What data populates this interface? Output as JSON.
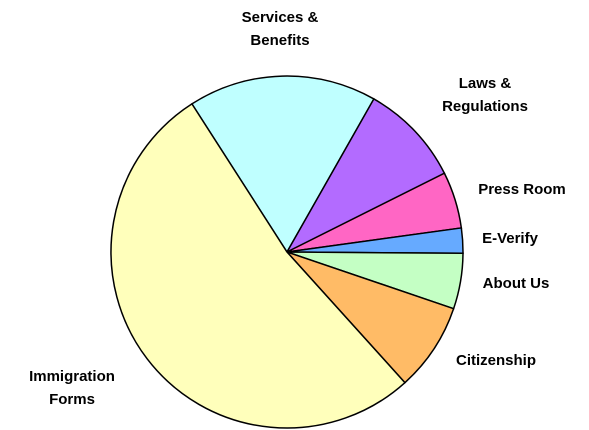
{
  "chart_data": {
    "type": "pie",
    "categories": [
      "Services & Benefits",
      "Laws & Regulations",
      "Press Room",
      "E-Verify",
      "About Us",
      "Citizenship",
      "Immigration Forms"
    ],
    "values": [
      17.3,
      9.4,
      5.2,
      2.3,
      5.1,
      8.1,
      52.6
    ],
    "colors": [
      "#bfffff",
      "#b36bff",
      "#ff66c4",
      "#66aaff",
      "#c4ffc4",
      "#ffbb66",
      "#ffffbb"
    ],
    "startangle": -32.7
  }
}
